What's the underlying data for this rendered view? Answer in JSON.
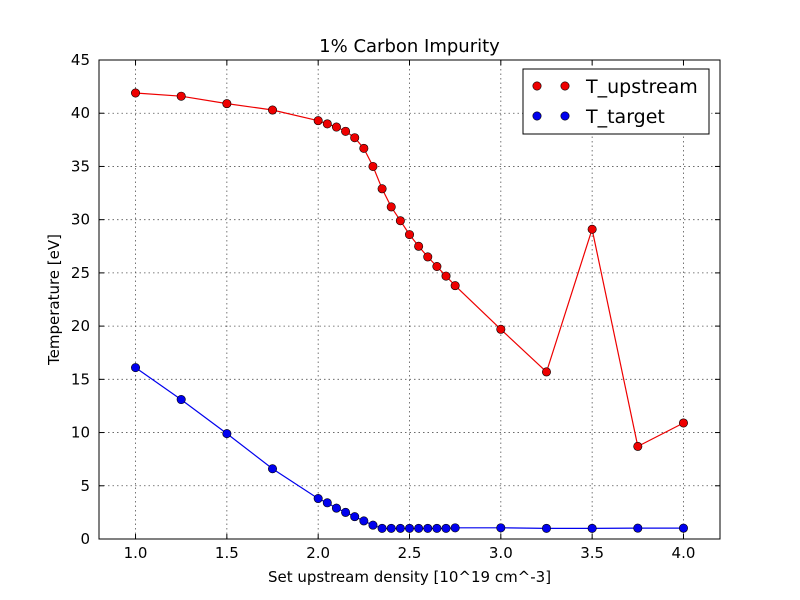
{
  "chart_data": {
    "type": "line",
    "title": "1% Carbon Impurity",
    "xlabel": "Set upstream density [10^19 cm^-3]",
    "ylabel": "Temperature [eV]",
    "xlim": [
      0.8,
      4.2
    ],
    "ylim": [
      0,
      45
    ],
    "xticks": [
      1.0,
      1.5,
      2.0,
      2.5,
      3.0,
      3.5,
      4.0
    ],
    "xtick_labels": [
      "1.0",
      "1.5",
      "2.0",
      "2.5",
      "3.0",
      "3.5",
      "4.0"
    ],
    "yticks": [
      0,
      5,
      10,
      15,
      20,
      25,
      30,
      35,
      40,
      45
    ],
    "ytick_labels": [
      "0",
      "5",
      "10",
      "15",
      "20",
      "25",
      "30",
      "35",
      "40",
      "45"
    ],
    "grid": true,
    "legend_position": "top-right",
    "x": [
      1.0,
      1.25,
      1.5,
      1.75,
      2.0,
      2.05,
      2.1,
      2.15,
      2.2,
      2.25,
      2.3,
      2.35,
      2.4,
      2.45,
      2.5,
      2.55,
      2.6,
      2.65,
      2.7,
      2.75,
      3.0,
      3.25,
      3.5,
      3.75,
      4.0
    ],
    "series": [
      {
        "name": "T_upstream",
        "color": "#ee0000",
        "values": [
          41.9,
          41.6,
          40.9,
          40.3,
          39.3,
          39.0,
          38.7,
          38.3,
          37.7,
          36.7,
          35.0,
          32.9,
          31.2,
          29.9,
          28.6,
          27.5,
          26.5,
          25.6,
          24.7,
          23.8,
          19.7,
          15.7,
          29.1,
          8.7,
          10.9
        ]
      },
      {
        "name": "T_target",
        "color": "#0000ee",
        "values": [
          16.1,
          13.1,
          9.9,
          6.6,
          3.8,
          3.4,
          2.9,
          2.5,
          2.1,
          1.7,
          1.3,
          1.0,
          1.0,
          1.0,
          1.0,
          1.0,
          1.0,
          1.0,
          1.0,
          1.05,
          1.05,
          1.0,
          1.0,
          1.02,
          1.02
        ]
      }
    ]
  }
}
